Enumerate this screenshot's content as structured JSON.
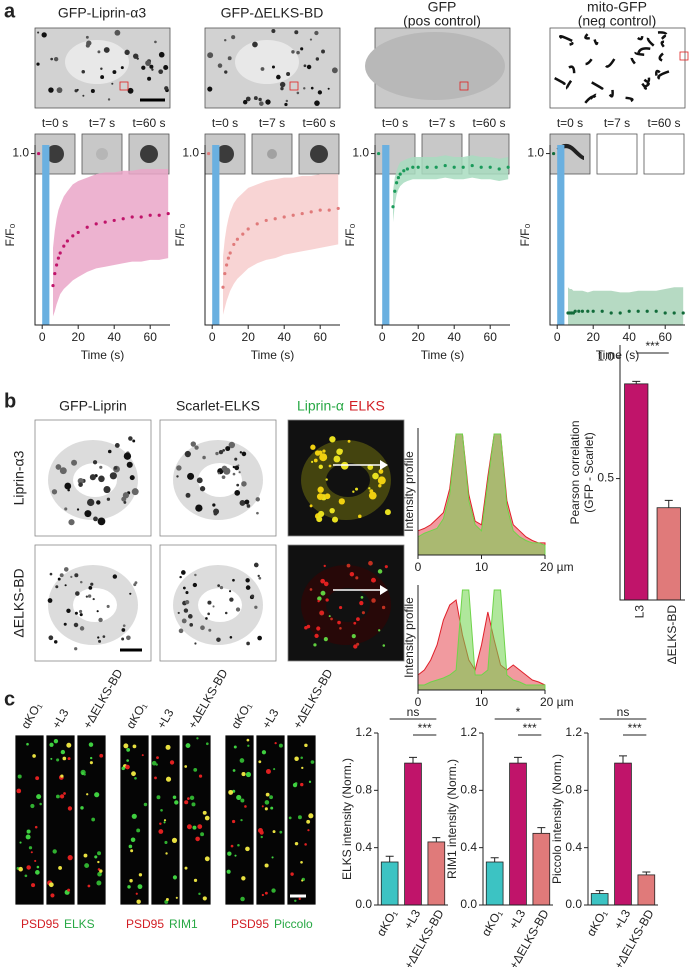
{
  "panel_a": {
    "label": "a",
    "conditions": [
      [
        "GFP-Liprin-α3"
      ],
      [
        "GFP-ΔELKS-BD"
      ],
      [
        "GFP",
        "(pos control)"
      ],
      [
        "mito-GFP",
        "(neg control)"
      ]
    ],
    "time_labels": [
      "t=0 s",
      "t=7 s",
      "t=60 s"
    ]
  },
  "panel_b": {
    "label": "b",
    "columns": [
      "GFP-Liprin",
      "Scarlet-ELKS"
    ],
    "merge_labels": [
      "Liprin-α",
      "ELKS"
    ],
    "rows": [
      "Liprin-α3",
      "ΔELKS-BD"
    ]
  },
  "panel_c": {
    "label": "c",
    "lanes": [
      "αKO₁",
      "+L3",
      "+ΔELKS-BD"
    ],
    "stains": [
      [
        "PSD95",
        "ELKS"
      ],
      [
        "PSD95",
        "RIM1"
      ],
      [
        "PSD95",
        "Piccolo"
      ]
    ]
  },
  "chart_data": [
    {
      "type": "line",
      "x_label": "Time (s)",
      "y_label": "F/F₀",
      "xlim": [
        -4,
        71
      ],
      "ylim": [
        0,
        1.05
      ],
      "xticks": [
        0,
        20,
        40,
        60
      ],
      "yticks": [
        {
          "value": 1,
          "label": "1.0"
        }
      ],
      "bleach_window": [
        0,
        4
      ],
      "bleach_color": "#6ab0e0",
      "color": "#c0146a",
      "band_color": "#eaa6c8",
      "x": [
        -2,
        6,
        7,
        8,
        9,
        10,
        12,
        14,
        17,
        20,
        25,
        30,
        35,
        40,
        45,
        50,
        55,
        60,
        65,
        70
      ],
      "values": [
        1.0,
        0.23,
        0.3,
        0.35,
        0.39,
        0.42,
        0.46,
        0.49,
        0.52,
        0.54,
        0.57,
        0.59,
        0.6,
        0.61,
        0.62,
        0.63,
        0.63,
        0.64,
        0.64,
        0.65
      ],
      "upper": [
        null,
        0.45,
        0.55,
        0.62,
        0.67,
        0.7,
        0.75,
        0.78,
        0.82,
        0.84,
        0.86,
        0.88,
        0.89,
        0.89,
        0.9,
        0.9,
        0.91,
        0.91,
        0.91,
        0.91
      ],
      "lower": [
        null,
        0.05,
        0.08,
        0.12,
        0.15,
        0.18,
        0.21,
        0.23,
        0.26,
        0.28,
        0.31,
        0.33,
        0.34,
        0.35,
        0.36,
        0.37,
        0.37,
        0.38,
        0.38,
        0.39
      ]
    },
    {
      "type": "line",
      "x_label": "Time (s)",
      "y_label": "F/F₀",
      "xlim": [
        -4,
        71
      ],
      "ylim": [
        0,
        1.05
      ],
      "xticks": [
        0,
        20,
        40,
        60
      ],
      "yticks": [
        {
          "value": 1,
          "label": "1.0"
        }
      ],
      "bleach_window": [
        0,
        4
      ],
      "bleach_color": "#6ab0e0",
      "color": "#e07a7a",
      "band_color": "#f7cccc",
      "x": [
        -2,
        6,
        7,
        8,
        9,
        10,
        12,
        14,
        17,
        20,
        25,
        30,
        35,
        40,
        45,
        50,
        55,
        60,
        65,
        70
      ],
      "values": [
        1.0,
        0.22,
        0.3,
        0.35,
        0.39,
        0.42,
        0.47,
        0.5,
        0.53,
        0.56,
        0.59,
        0.61,
        0.62,
        0.63,
        0.64,
        0.65,
        0.66,
        0.67,
        0.67,
        0.68
      ],
      "upper": [
        null,
        0.4,
        0.5,
        0.57,
        0.62,
        0.66,
        0.71,
        0.74,
        0.77,
        0.8,
        0.82,
        0.84,
        0.85,
        0.86,
        0.86,
        0.87,
        0.87,
        0.88,
        0.88,
        0.88
      ],
      "lower": [
        null,
        0.06,
        0.1,
        0.14,
        0.17,
        0.2,
        0.24,
        0.27,
        0.3,
        0.33,
        0.36,
        0.38,
        0.39,
        0.41,
        0.42,
        0.43,
        0.44,
        0.45,
        0.46,
        0.47
      ]
    },
    {
      "type": "line",
      "x_label": "Time (s)",
      "y_label": "F/F₀",
      "xlim": [
        -4,
        71
      ],
      "ylim": [
        0,
        1.05
      ],
      "xticks": [
        0,
        20,
        40,
        60
      ],
      "yticks": [
        {
          "value": 1,
          "label": "1.0"
        }
      ],
      "bleach_window": [
        0,
        4
      ],
      "bleach_color": "#6ab0e0",
      "color": "#1a9a5a",
      "band_color": "#a8dcc0",
      "x": [
        -2,
        6,
        7,
        8,
        9,
        10,
        12,
        14,
        17,
        20,
        25,
        30,
        35,
        40,
        45,
        50,
        55,
        60,
        65,
        70
      ],
      "values": [
        1.0,
        0.69,
        0.78,
        0.83,
        0.86,
        0.88,
        0.9,
        0.91,
        0.92,
        0.92,
        0.92,
        0.92,
        0.93,
        0.92,
        0.92,
        0.93,
        0.92,
        0.92,
        0.91,
        0.92
      ],
      "upper": [
        null,
        0.78,
        0.86,
        0.9,
        0.93,
        0.95,
        0.96,
        0.97,
        0.98,
        0.98,
        0.98,
        0.98,
        0.99,
        0.98,
        0.98,
        0.99,
        0.98,
        0.98,
        0.97,
        0.98
      ],
      "lower": [
        null,
        0.6,
        0.7,
        0.76,
        0.79,
        0.81,
        0.83,
        0.84,
        0.85,
        0.85,
        0.85,
        0.85,
        0.86,
        0.85,
        0.85,
        0.86,
        0.85,
        0.85,
        0.84,
        0.85
      ]
    },
    {
      "type": "line",
      "x_label": "Time (s)",
      "y_label": "F/F₀",
      "xlim": [
        -4,
        71
      ],
      "ylim": [
        0,
        1.05
      ],
      "xticks": [
        0,
        20,
        40,
        60
      ],
      "yticks": [
        {
          "value": 1,
          "label": "1.0"
        }
      ],
      "bleach_window": [
        0,
        4
      ],
      "bleach_color": "#6ab0e0",
      "color": "#126b3a",
      "band_color": "#a9d3b9",
      "x": [
        -2,
        6,
        7,
        8,
        9,
        10,
        12,
        14,
        17,
        20,
        25,
        30,
        35,
        40,
        45,
        50,
        55,
        60,
        65,
        70
      ],
      "values": [
        1.0,
        0.07,
        0.07,
        0.07,
        0.07,
        0.08,
        0.08,
        0.08,
        0.08,
        0.08,
        0.08,
        0.07,
        0.07,
        0.08,
        0.08,
        0.08,
        0.08,
        0.07,
        0.07,
        0.07
      ],
      "upper": [
        null,
        0.22,
        0.21,
        0.21,
        0.2,
        0.2,
        0.2,
        0.2,
        0.19,
        0.2,
        0.2,
        0.2,
        0.19,
        0.19,
        0.2,
        0.2,
        0.2,
        0.21,
        0.22,
        0.22
      ],
      "lower": [
        null,
        0,
        0,
        0,
        0,
        0,
        0,
        0,
        0,
        0,
        0,
        0,
        0,
        0,
        0,
        0,
        0,
        0,
        0,
        0
      ]
    },
    {
      "type": "area",
      "y_label": "Intensity profile",
      "xlim": [
        0,
        20
      ],
      "ylim": [
        0,
        1.05
      ],
      "xticks": [
        0,
        10,
        {
          "value": 20,
          "label": "20 µm"
        }
      ],
      "x": [
        0,
        1,
        2,
        3,
        4,
        5,
        6,
        7,
        8,
        9,
        10,
        11,
        12,
        13,
        14,
        15,
        16,
        17,
        18,
        19,
        20
      ],
      "series": [
        {
          "name": "ELKS",
          "color": "#e0202a",
          "values": [
            0.2,
            0.22,
            0.25,
            0.3,
            0.35,
            0.55,
            1.0,
            1.0,
            0.5,
            0.28,
            0.25,
            0.65,
            1.0,
            1.0,
            0.45,
            0.25,
            0.2,
            0.15,
            0.12,
            0.1,
            0.1
          ]
        },
        {
          "name": "Liprin-α",
          "color": "#6fd44a",
          "values": [
            0.15,
            0.18,
            0.2,
            0.22,
            0.3,
            0.5,
            1.0,
            1.0,
            0.45,
            0.25,
            0.2,
            0.6,
            1.0,
            1.0,
            0.4,
            0.2,
            0.15,
            0.12,
            0.1,
            0.1,
            0.08
          ]
        }
      ]
    },
    {
      "type": "area",
      "y_label": "Intensity profile",
      "xlim": [
        0,
        20
      ],
      "ylim": [
        0,
        1.05
      ],
      "xticks": [
        0,
        10,
        {
          "value": 20,
          "label": "20 µm"
        }
      ],
      "x": [
        0,
        1,
        2,
        3,
        4,
        5,
        6,
        7,
        8,
        9,
        10,
        11,
        12,
        13,
        14,
        15,
        16,
        17,
        18,
        19,
        20
      ],
      "series": [
        {
          "name": "ELKS",
          "color": "#e0202a",
          "values": [
            0.15,
            0.2,
            0.3,
            0.45,
            0.7,
            0.85,
            0.9,
            0.55,
            0.3,
            0.2,
            0.45,
            0.78,
            0.5,
            0.25,
            0.2,
            0.25,
            0.2,
            0.15,
            0.1,
            0.08,
            0.05
          ]
        },
        {
          "name": "Liprin-α",
          "color": "#6fd44a",
          "values": [
            0.05,
            0.05,
            0.08,
            0.1,
            0.12,
            0.15,
            0.2,
            1.0,
            1.0,
            0.15,
            0.15,
            0.2,
            1.0,
            1.0,
            0.15,
            0.1,
            0.08,
            0.05,
            0.05,
            0.05,
            0.05
          ]
        }
      ]
    },
    {
      "type": "bar",
      "y_label": [
        "Pearson correlation",
        "(GFP - Scarlet)"
      ],
      "categories": [
        "L3",
        "ΔELKS-BD"
      ],
      "values": [
        0.89,
        0.38
      ],
      "errors": [
        0.01,
        0.03
      ],
      "colors": [
        "#c0146a",
        "#e07a7a"
      ],
      "ylim": [
        0,
        1.05
      ],
      "yticks": [
        0.5,
        {
          "value": 1,
          "label": "1.0"
        }
      ],
      "significance": [
        "***"
      ]
    },
    {
      "type": "bar",
      "y_label": [
        "ELKS intensity (Norm.)"
      ],
      "categories": [
        "αKO₁",
        "+L3",
        "+ΔELKS-BD"
      ],
      "values": [
        0.3,
        0.99,
        0.44
      ],
      "errors": [
        0.04,
        0.04,
        0.03
      ],
      "colors": [
        "#3cc3c3",
        "#c0146a",
        "#e07a7a"
      ],
      "ylim": [
        0,
        1.2
      ],
      "yticks": [
        {
          "value": 0,
          "label": "0.0"
        },
        0.4,
        0.8,
        1.2
      ],
      "significance": [
        "ns",
        "***"
      ]
    },
    {
      "type": "bar",
      "y_label": [
        "RIM1 intensity (Norm.)"
      ],
      "categories": [
        "αKO₁",
        "+L3",
        "+ΔELKS-BD"
      ],
      "values": [
        0.3,
        0.99,
        0.5
      ],
      "errors": [
        0.03,
        0.04,
        0.04
      ],
      "colors": [
        "#3cc3c3",
        "#c0146a",
        "#e07a7a"
      ],
      "ylim": [
        0,
        1.2
      ],
      "yticks": [
        {
          "value": 0,
          "label": "0.0"
        },
        0.4,
        0.8,
        1.2
      ],
      "significance": [
        "*",
        "***"
      ]
    },
    {
      "type": "bar",
      "y_label": [
        "Piccolo intensity (Norm.)"
      ],
      "categories": [
        "αKO₁",
        "+L3",
        "+ΔELKS-BD"
      ],
      "values": [
        0.08,
        0.99,
        0.21
      ],
      "errors": [
        0.02,
        0.05,
        0.02
      ],
      "colors": [
        "#3cc3c3",
        "#c0146a",
        "#e07a7a"
      ],
      "ylim": [
        0,
        1.2
      ],
      "yticks": [
        {
          "value": 0,
          "label": "0.0"
        },
        0.4,
        0.8,
        1.2
      ],
      "significance": [
        "ns",
        "***"
      ]
    }
  ]
}
